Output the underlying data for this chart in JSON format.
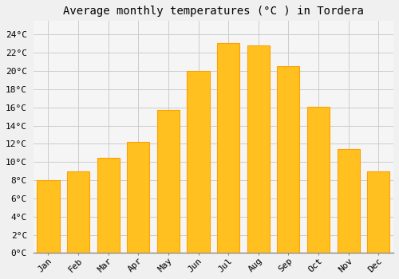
{
  "title": "Average monthly temperatures (°C ) in Tordera",
  "months": [
    "Jan",
    "Feb",
    "Mar",
    "Apr",
    "May",
    "Jun",
    "Jul",
    "Aug",
    "Sep",
    "Oct",
    "Nov",
    "Dec"
  ],
  "values": [
    8.0,
    9.0,
    10.5,
    12.2,
    15.7,
    20.0,
    23.1,
    22.8,
    20.5,
    16.1,
    11.4,
    9.0
  ],
  "bar_color": "#FFC020",
  "bar_edge_color": "#FFA000",
  "background_color": "#F0F0F0",
  "plot_bg_color": "#F5F5F5",
  "grid_color": "#CCCCCC",
  "yticks": [
    0,
    2,
    4,
    6,
    8,
    10,
    12,
    14,
    16,
    18,
    20,
    22,
    24
  ],
  "ylim": [
    0,
    25.5
  ],
  "title_fontsize": 10,
  "tick_fontsize": 8,
  "font_family": "monospace"
}
